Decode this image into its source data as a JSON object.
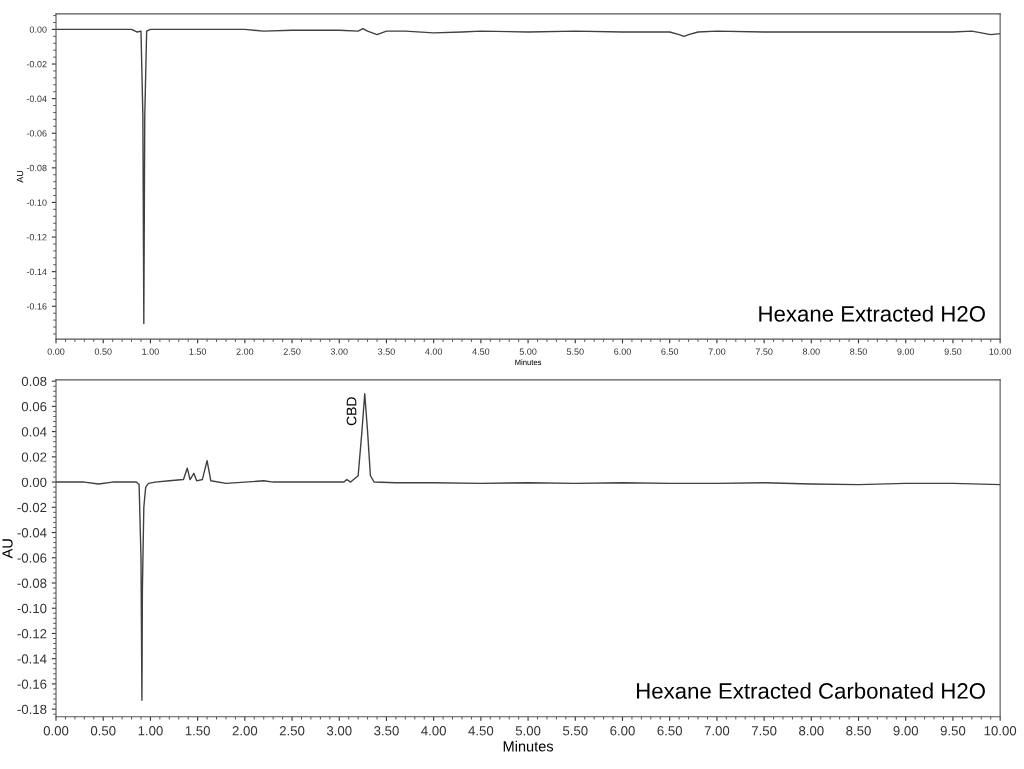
{
  "chart_data": [
    {
      "type": "line",
      "xlabel": "Minutes",
      "ylabel": "AU",
      "xlim": [
        0,
        10
      ],
      "ylim": [
        -0.179,
        0.009
      ],
      "xticks": [
        {
          "value": 0,
          "label": "0.00"
        },
        {
          "value": 0.5,
          "label": "0.50"
        },
        {
          "value": 1,
          "label": "1.00"
        },
        {
          "value": 1.5,
          "label": "1.50"
        },
        {
          "value": 2,
          "label": "2.00"
        },
        {
          "value": 2.5,
          "label": "2.50"
        },
        {
          "value": 3,
          "label": "3.00"
        },
        {
          "value": 3.5,
          "label": "3.50"
        },
        {
          "value": 4,
          "label": "4.00"
        },
        {
          "value": 4.5,
          "label": "4.50"
        },
        {
          "value": 5,
          "label": "5.00"
        },
        {
          "value": 5.5,
          "label": "5.50"
        },
        {
          "value": 6,
          "label": "6.00"
        },
        {
          "value": 6.5,
          "label": "6.50"
        },
        {
          "value": 7,
          "label": "7.00"
        },
        {
          "value": 7.5,
          "label": "7.50"
        },
        {
          "value": 8,
          "label": "8.00"
        },
        {
          "value": 8.5,
          "label": "8.50"
        },
        {
          "value": 9,
          "label": "9.00"
        },
        {
          "value": 9.5,
          "label": "9.50"
        },
        {
          "value": 10,
          "label": "10.00"
        }
      ],
      "yticks": [
        {
          "value": 0,
          "label": "0.00"
        },
        {
          "value": -0.02,
          "label": "-0.02"
        },
        {
          "value": -0.04,
          "label": "-0.04"
        },
        {
          "value": -0.06,
          "label": "-0.06"
        },
        {
          "value": -0.08,
          "label": "-0.08"
        },
        {
          "value": -0.1,
          "label": "-0.10"
        },
        {
          "value": -0.12,
          "label": "-0.12"
        },
        {
          "value": -0.14,
          "label": "-0.14"
        },
        {
          "value": -0.16,
          "label": "-0.16"
        }
      ],
      "grid": false,
      "legend": false,
      "marker": "none",
      "line_style": "solid",
      "series": [
        {
          "color": "#404040",
          "x": [
            0,
            0.5,
            0.8,
            0.84,
            0.86,
            0.9,
            0.92,
            0.93,
            0.94,
            0.96,
            1.0,
            1.5,
            2.0,
            2.2,
            2.5,
            3.0,
            3.2,
            3.25,
            3.3,
            3.4,
            3.5,
            3.7,
            4.0,
            4.3,
            4.5,
            5.0,
            5.5,
            6.0,
            6.5,
            6.6,
            6.65,
            6.7,
            6.8,
            7.0,
            7.5,
            8.0,
            8.5,
            9.0,
            9.5,
            9.7,
            9.9,
            10.0
          ],
          "values": [
            0,
            0,
            0,
            -0.001,
            -0.0015,
            -0.001,
            -0.05,
            -0.17,
            -0.05,
            -0.001,
            0,
            0,
            0,
            -0.001,
            -0.0005,
            -0.0005,
            -0.001,
            0.0005,
            -0.001,
            -0.003,
            -0.001,
            -0.001,
            -0.002,
            -0.0015,
            -0.001,
            -0.0015,
            -0.001,
            -0.0015,
            -0.0015,
            -0.003,
            -0.004,
            -0.003,
            -0.0015,
            -0.001,
            -0.0015,
            -0.0015,
            -0.0015,
            -0.0015,
            -0.0015,
            -0.001,
            -0.003,
            -0.0025
          ]
        }
      ],
      "annotations": [
        "Hexane Extracted H2O"
      ]
    },
    {
      "type": "line",
      "xlabel": "Minutes",
      "ylabel": "AU",
      "xlim": [
        0,
        10
      ],
      "ylim": [
        -0.186,
        0.081
      ],
      "xticks": [
        {
          "value": 0,
          "label": "0.00"
        },
        {
          "value": 0.5,
          "label": "0.50"
        },
        {
          "value": 1,
          "label": "1.00"
        },
        {
          "value": 1.5,
          "label": "1.50"
        },
        {
          "value": 2,
          "label": "2.00"
        },
        {
          "value": 2.5,
          "label": "2.50"
        },
        {
          "value": 3,
          "label": "3.00"
        },
        {
          "value": 3.5,
          "label": "3.50"
        },
        {
          "value": 4,
          "label": "4.00"
        },
        {
          "value": 4.5,
          "label": "4.50"
        },
        {
          "value": 5,
          "label": "5.00"
        },
        {
          "value": 5.5,
          "label": "5.50"
        },
        {
          "value": 6,
          "label": "6.00"
        },
        {
          "value": 6.5,
          "label": "6.50"
        },
        {
          "value": 7,
          "label": "7.00"
        },
        {
          "value": 7.5,
          "label": "7.50"
        },
        {
          "value": 8,
          "label": "8.00"
        },
        {
          "value": 8.5,
          "label": "8.50"
        },
        {
          "value": 9,
          "label": "9.00"
        },
        {
          "value": 9.5,
          "label": "9.50"
        },
        {
          "value": 10,
          "label": "10.00"
        }
      ],
      "yticks": [
        {
          "value": 0.08,
          "label": "0.08"
        },
        {
          "value": 0.06,
          "label": "0.06"
        },
        {
          "value": 0.04,
          "label": "0.04"
        },
        {
          "value": 0.02,
          "label": "0.02"
        },
        {
          "value": 0,
          "label": "0.00"
        },
        {
          "value": -0.02,
          "label": "-0.02"
        },
        {
          "value": -0.04,
          "label": "-0.04"
        },
        {
          "value": -0.06,
          "label": "-0.06"
        },
        {
          "value": -0.08,
          "label": "-0.08"
        },
        {
          "value": -0.1,
          "label": "-0.10"
        },
        {
          "value": -0.12,
          "label": "-0.12"
        },
        {
          "value": -0.14,
          "label": "-0.14"
        },
        {
          "value": -0.16,
          "label": "-0.16"
        },
        {
          "value": -0.18,
          "label": "-0.18"
        }
      ],
      "grid": false,
      "legend": false,
      "marker": "none",
      "line_style": "solid",
      "series": [
        {
          "color": "#404040",
          "x": [
            0,
            0.3,
            0.45,
            0.6,
            0.85,
            0.88,
            0.9,
            0.91,
            0.915,
            0.93,
            0.95,
            0.98,
            1.05,
            1.2,
            1.35,
            1.39,
            1.42,
            1.46,
            1.49,
            1.55,
            1.6,
            1.64,
            1.8,
            2.2,
            2.3,
            3.05,
            3.08,
            3.12,
            3.2,
            3.24,
            3.27,
            3.3,
            3.33,
            3.37,
            3.6,
            4.0,
            4.5,
            5.0,
            5.5,
            6.0,
            6.5,
            7.0,
            7.5,
            8.0,
            8.5,
            9.0,
            9.5,
            10.0
          ],
          "values": [
            0,
            0,
            -0.0015,
            0,
            0,
            -0.002,
            -0.06,
            -0.173,
            -0.085,
            -0.02,
            -0.004,
            -0.001,
            0,
            0.001,
            0.002,
            0.011,
            0.002,
            0.007,
            0.001,
            0.002,
            0.017,
            0.001,
            -0.001,
            0.001,
            0,
            0,
            0.002,
            0,
            0.005,
            0.04,
            0.07,
            0.04,
            0.005,
            0,
            -0.0005,
            -0.0005,
            -0.001,
            -0.0005,
            -0.001,
            -0.0005,
            -0.001,
            -0.001,
            -0.0005,
            -0.0015,
            -0.002,
            -0.001,
            -0.001,
            -0.002
          ]
        }
      ],
      "annotations": [
        {
          "text": "CBD",
          "x": 3.27,
          "y": 0.07
        },
        "Hexane Extracted Carbonated H2O"
      ]
    }
  ]
}
